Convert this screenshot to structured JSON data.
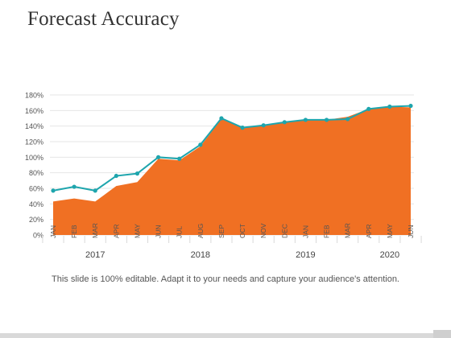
{
  "slide": {
    "title": "Forecast Accuracy",
    "caption": "This slide is 100% editable. Adapt it to your needs and capture your audience's attention."
  },
  "chart_data": {
    "type": "area",
    "title": "",
    "xlabel": "",
    "ylabel": "",
    "ylim": [
      0,
      180
    ],
    "y_ticks": [
      "0%",
      "20%",
      "40%",
      "60%",
      "80%",
      "100%",
      "120%",
      "140%",
      "160%",
      "180%"
    ],
    "categories": [
      "JAN",
      "FEB",
      "MAR",
      "APR",
      "MAY",
      "JUN",
      "JUL",
      "AUG",
      "SEP",
      "OCT",
      "NOV",
      "DEC",
      "JAN",
      "FEB",
      "MAR",
      "APR",
      "MAY",
      "JUN"
    ],
    "year_groups": [
      {
        "label": "2017",
        "start": 0,
        "end": 4
      },
      {
        "label": "2018",
        "start": 5,
        "end": 9
      },
      {
        "label": "2019",
        "start": 10,
        "end": 14
      },
      {
        "label": "2020",
        "start": 15,
        "end": 17
      }
    ],
    "grid": true,
    "legend": "none",
    "series": [
      {
        "values": [
          43,
          47,
          43,
          63,
          68,
          98,
          96,
          114,
          149,
          139,
          140,
          145,
          148,
          148,
          152,
          162,
          165,
          164
        ],
        "kind": "area",
        "color": "#f07023"
      },
      {
        "values": [
          57,
          62,
          57,
          76,
          79,
          100,
          98,
          116,
          150,
          138,
          141,
          145,
          148,
          148,
          149,
          162,
          165,
          166
        ],
        "kind": "line",
        "color": "#1ea5ad"
      }
    ]
  }
}
